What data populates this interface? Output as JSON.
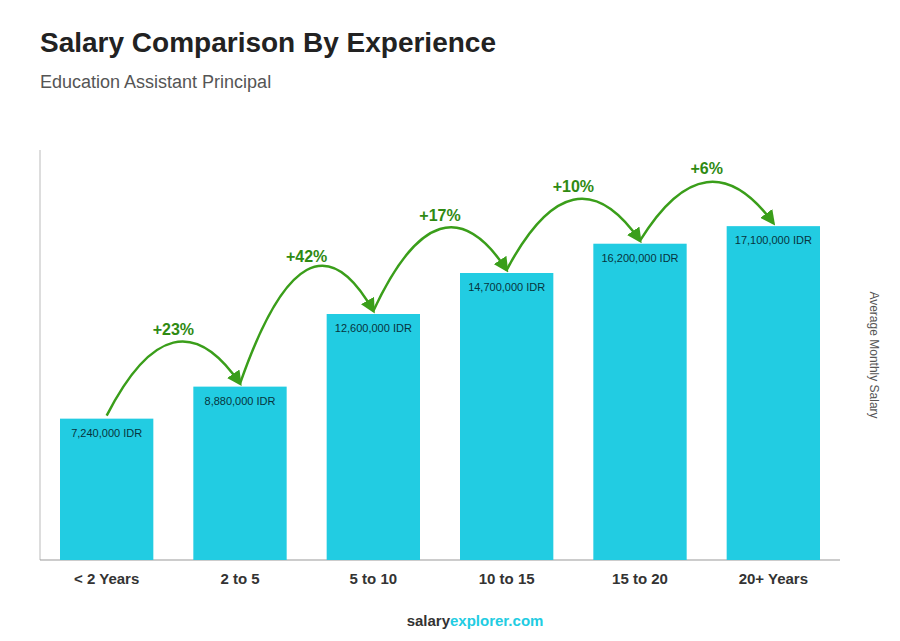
{
  "chart_data": {
    "type": "bar",
    "title": "Salary Comparison By Experience",
    "subtitle": "Education Assistant Principal",
    "y_label": "Average Monthly Salary",
    "categories": [
      "< 2 Years",
      "2 to 5",
      "5 to 10",
      "10 to 15",
      "15 to 20",
      "20+ Years"
    ],
    "values": [
      7240000,
      8880000,
      12600000,
      14700000,
      16200000,
      17100000
    ],
    "value_labels": [
      "7,240,000 IDR",
      "8,880,000 IDR",
      "12,600,000 IDR",
      "14,700,000 IDR",
      "16,200,000 IDR",
      "17,100,000 IDR"
    ],
    "annotations": [
      "+23%",
      "+42%",
      "+17%",
      "+10%",
      "+6%"
    ],
    "footer": [
      "salary",
      "explorer.com"
    ],
    "color": "#22cce2",
    "ylim": [
      0,
      21000000
    ],
    "yticks": [],
    "tick_labels": "x",
    "data_labels": true,
    "grid": false
  }
}
